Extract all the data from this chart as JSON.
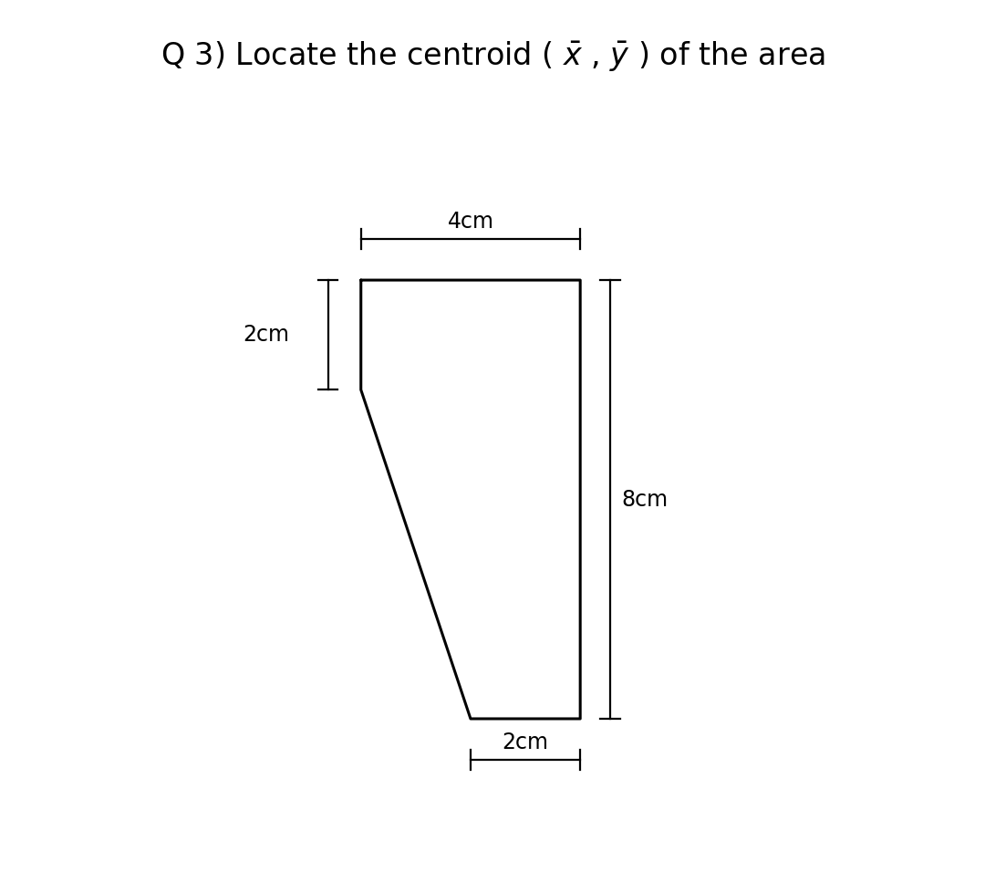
{
  "title": "Q 3) Locate the centroid ( $\\bar{x}$ , $\\bar{y}$ ) of the area",
  "shape_vertices_x": [
    0,
    4,
    4,
    2,
    0
  ],
  "shape_vertices_y": [
    8,
    8,
    0,
    0,
    6
  ],
  "dim_4cm_label": "4cm",
  "dim_2cm_left_label": "2cm",
  "dim_8cm_label": "8cm",
  "dim_2cm_bottom_label": "2cm",
  "bg_color": "#ffffff",
  "shape_color": "#000000",
  "shape_lw": 2.2,
  "dim_lw": 1.6,
  "font_size_title": 24,
  "font_size_dim": 17,
  "xlim": [
    -2.2,
    7.0
  ],
  "ylim": [
    -2.0,
    11.2
  ]
}
